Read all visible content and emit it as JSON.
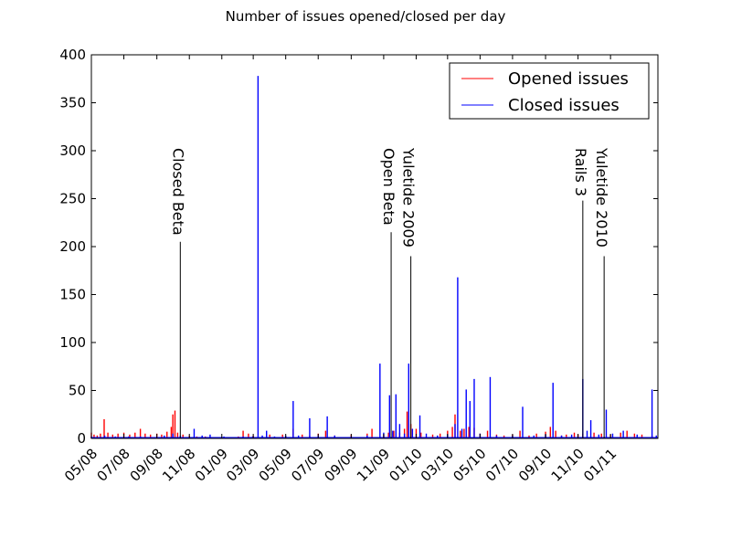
{
  "chart_data": {
    "type": "line",
    "title": "Number of issues opened/closed per day",
    "xlabel": "",
    "ylabel": "",
    "x_range": [
      "2008-05-01",
      "2011-03-31"
    ],
    "ylim": [
      0,
      400
    ],
    "y_ticks": [
      0,
      50,
      100,
      150,
      200,
      250,
      300,
      350,
      400
    ],
    "x_ticks": [
      {
        "date": "2008-05-01",
        "label": "05/08"
      },
      {
        "date": "2008-07-01",
        "label": "07/08"
      },
      {
        "date": "2008-09-01",
        "label": "09/08"
      },
      {
        "date": "2008-11-01",
        "label": "11/08"
      },
      {
        "date": "2009-01-01",
        "label": "01/09"
      },
      {
        "date": "2009-03-01",
        "label": "03/09"
      },
      {
        "date": "2009-05-01",
        "label": "05/09"
      },
      {
        "date": "2009-07-01",
        "label": "07/09"
      },
      {
        "date": "2009-09-01",
        "label": "09/09"
      },
      {
        "date": "2009-11-01",
        "label": "11/09"
      },
      {
        "date": "2010-01-01",
        "label": "01/10"
      },
      {
        "date": "2010-03-01",
        "label": "03/10"
      },
      {
        "date": "2010-05-01",
        "label": "05/10"
      },
      {
        "date": "2010-07-01",
        "label": "07/10"
      },
      {
        "date": "2010-09-01",
        "label": "09/10"
      },
      {
        "date": "2010-11-01",
        "label": "11/10"
      },
      {
        "date": "2011-01-01",
        "label": "01/11"
      }
    ],
    "grid": false,
    "legend": {
      "position": "top-right",
      "entries": [
        "Opened issues",
        "Closed issues"
      ]
    },
    "series": [
      {
        "name": "Opened issues",
        "color": "#ff0000",
        "points": [
          [
            "2008-05-01",
            6
          ],
          [
            "2008-05-06",
            4
          ],
          [
            "2008-05-12",
            3
          ],
          [
            "2008-05-18",
            5
          ],
          [
            "2008-05-25",
            20
          ],
          [
            "2008-06-01",
            6
          ],
          [
            "2008-06-10",
            4
          ],
          [
            "2008-06-20",
            5
          ],
          [
            "2008-07-01",
            6
          ],
          [
            "2008-07-12",
            4
          ],
          [
            "2008-07-22",
            6
          ],
          [
            "2008-08-01",
            10
          ],
          [
            "2008-08-10",
            5
          ],
          [
            "2008-08-20",
            4
          ],
          [
            "2008-09-01",
            5
          ],
          [
            "2008-09-10",
            4
          ],
          [
            "2008-09-20",
            7
          ],
          [
            "2008-09-28",
            12
          ],
          [
            "2008-10-01",
            25
          ],
          [
            "2008-10-05",
            29
          ],
          [
            "2008-10-10",
            6
          ],
          [
            "2008-10-20",
            4
          ],
          [
            "2008-11-01",
            3
          ],
          [
            "2008-11-15",
            2
          ],
          [
            "2008-12-01",
            2
          ],
          [
            "2009-01-01",
            1
          ],
          [
            "2009-02-01",
            2
          ],
          [
            "2009-02-10",
            8
          ],
          [
            "2009-02-20",
            5
          ],
          [
            "2009-03-01",
            3
          ],
          [
            "2009-04-01",
            4
          ],
          [
            "2009-04-25",
            4
          ],
          [
            "2009-05-01",
            2
          ],
          [
            "2009-05-15",
            10
          ],
          [
            "2009-06-01",
            4
          ],
          [
            "2009-06-15",
            3
          ],
          [
            "2009-07-01",
            5
          ],
          [
            "2009-07-15",
            8
          ],
          [
            "2009-08-01",
            3
          ],
          [
            "2009-09-01",
            4
          ],
          [
            "2009-10-01",
            5
          ],
          [
            "2009-10-10",
            10
          ],
          [
            "2009-11-01",
            4
          ],
          [
            "2009-11-10",
            6
          ],
          [
            "2009-11-20",
            8
          ],
          [
            "2009-12-01",
            6
          ],
          [
            "2009-12-10",
            10
          ],
          [
            "2009-12-15",
            28
          ],
          [
            "2009-12-22",
            15
          ],
          [
            "2010-01-01",
            10
          ],
          [
            "2010-01-10",
            6
          ],
          [
            "2010-02-01",
            4
          ],
          [
            "2010-02-15",
            5
          ],
          [
            "2010-03-01",
            8
          ],
          [
            "2010-03-10",
            12
          ],
          [
            "2010-03-15",
            25
          ],
          [
            "2010-03-25",
            8
          ],
          [
            "2010-04-01",
            10
          ],
          [
            "2010-04-10",
            12
          ],
          [
            "2010-04-20",
            11
          ],
          [
            "2010-05-01",
            5
          ],
          [
            "2010-05-15",
            8
          ],
          [
            "2010-06-01",
            4
          ],
          [
            "2010-06-15",
            3
          ],
          [
            "2010-07-01",
            4
          ],
          [
            "2010-07-15",
            8
          ],
          [
            "2010-08-01",
            3
          ],
          [
            "2010-08-15",
            5
          ],
          [
            "2010-09-01",
            7
          ],
          [
            "2010-09-10",
            12
          ],
          [
            "2010-09-20",
            8
          ],
          [
            "2010-10-01",
            3
          ],
          [
            "2010-10-10",
            4
          ],
          [
            "2010-10-25",
            6
          ],
          [
            "2010-11-01",
            4
          ],
          [
            "2010-11-10",
            5
          ],
          [
            "2010-12-01",
            6
          ],
          [
            "2010-12-15",
            5
          ],
          [
            "2011-01-01",
            4
          ],
          [
            "2011-01-20",
            6
          ],
          [
            "2011-02-01",
            8
          ],
          [
            "2011-02-15",
            5
          ],
          [
            "2011-03-01",
            4
          ],
          [
            "2011-03-20",
            3
          ]
        ]
      },
      {
        "name": "Closed issues",
        "color": "#0000ff",
        "points": [
          [
            "2008-05-01",
            2
          ],
          [
            "2008-05-26",
            3
          ],
          [
            "2008-06-15",
            2
          ],
          [
            "2008-07-10",
            2
          ],
          [
            "2008-08-01",
            2
          ],
          [
            "2008-09-15",
            3
          ],
          [
            "2008-10-01",
            5
          ],
          [
            "2008-10-15",
            3
          ],
          [
            "2008-11-10",
            10
          ],
          [
            "2008-11-25",
            3
          ],
          [
            "2008-12-10",
            4
          ],
          [
            "2009-01-05",
            2
          ],
          [
            "2009-02-10",
            2
          ],
          [
            "2009-02-28",
            2
          ],
          [
            "2009-03-10",
            378
          ],
          [
            "2009-03-18",
            3
          ],
          [
            "2009-03-26",
            8
          ],
          [
            "2009-04-10",
            2
          ],
          [
            "2009-05-01",
            3
          ],
          [
            "2009-05-15",
            39
          ],
          [
            "2009-05-25",
            3
          ],
          [
            "2009-06-15",
            21
          ],
          [
            "2009-07-01",
            3
          ],
          [
            "2009-07-18",
            23
          ],
          [
            "2009-08-01",
            3
          ],
          [
            "2009-09-01",
            2
          ],
          [
            "2009-10-01",
            3
          ],
          [
            "2009-10-25",
            78
          ],
          [
            "2009-11-01",
            6
          ],
          [
            "2009-11-12",
            45
          ],
          [
            "2009-11-18",
            8
          ],
          [
            "2009-11-24",
            46
          ],
          [
            "2009-12-01",
            15
          ],
          [
            "2009-12-10",
            5
          ],
          [
            "2009-12-18",
            78
          ],
          [
            "2009-12-25",
            10
          ],
          [
            "2010-01-08",
            24
          ],
          [
            "2010-01-20",
            5
          ],
          [
            "2010-02-10",
            3
          ],
          [
            "2010-03-01",
            4
          ],
          [
            "2010-03-15",
            15
          ],
          [
            "2010-03-20",
            168
          ],
          [
            "2010-03-28",
            10
          ],
          [
            "2010-04-05",
            51
          ],
          [
            "2010-04-12",
            39
          ],
          [
            "2010-04-20",
            62
          ],
          [
            "2010-05-01",
            5
          ],
          [
            "2010-05-20",
            64
          ],
          [
            "2010-06-01",
            3
          ],
          [
            "2010-07-01",
            3
          ],
          [
            "2010-07-20",
            33
          ],
          [
            "2010-08-10",
            3
          ],
          [
            "2010-09-01",
            4
          ],
          [
            "2010-09-15",
            58
          ],
          [
            "2010-10-01",
            3
          ],
          [
            "2010-10-20",
            4
          ],
          [
            "2010-11-10",
            62
          ],
          [
            "2010-11-18",
            8
          ],
          [
            "2010-11-25",
            19
          ],
          [
            "2010-12-10",
            4
          ],
          [
            "2010-12-24",
            30
          ],
          [
            "2011-01-05",
            5
          ],
          [
            "2011-01-25",
            8
          ],
          [
            "2011-02-20",
            4
          ],
          [
            "2011-03-20",
            51
          ],
          [
            "2011-03-28",
            3
          ]
        ]
      }
    ],
    "annotations": [
      {
        "label": "Closed Beta",
        "date": "2008-10-15",
        "value": 205
      },
      {
        "label": "Open Beta",
        "date": "2009-11-15",
        "value": 215
      },
      {
        "label": "Yuletide 2009",
        "date": "2009-12-22",
        "value": 190
      },
      {
        "label": "Rails 3",
        "date": "2010-11-10",
        "value": 248
      },
      {
        "label": "Yuletide 2010",
        "date": "2010-12-20",
        "value": 190
      }
    ]
  }
}
